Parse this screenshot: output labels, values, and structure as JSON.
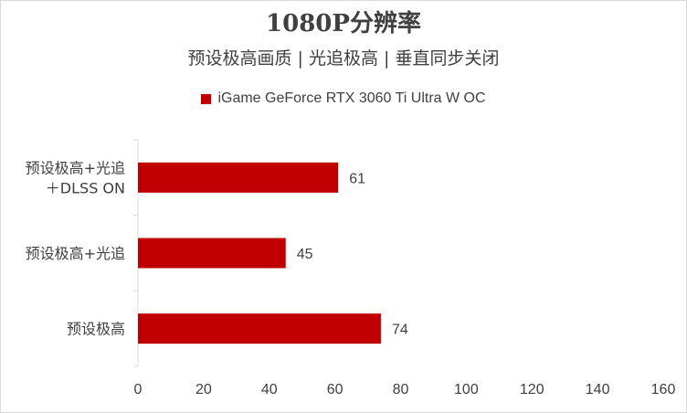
{
  "chart_data": {
    "type": "bar",
    "orientation": "horizontal",
    "title": "1080P分辨率",
    "subtitle": "预设极高画质 | 光追极高 | 垂直同步关闭",
    "categories": [
      [
        "预设极高+光追",
        "＋DLSS ON"
      ],
      [
        "预设极高+光追"
      ],
      [
        "预设极高"
      ]
    ],
    "series": [
      {
        "name": "iGame GeForce RTX 3060 Ti Ultra W OC",
        "values": [
          61,
          45,
          74
        ],
        "color": "#c00000"
      }
    ],
    "xlim": [
      0,
      160
    ],
    "x_ticks": [
      0,
      20,
      40,
      60,
      80,
      100,
      120,
      140,
      160
    ],
    "grid": false,
    "legend_position": "top"
  }
}
